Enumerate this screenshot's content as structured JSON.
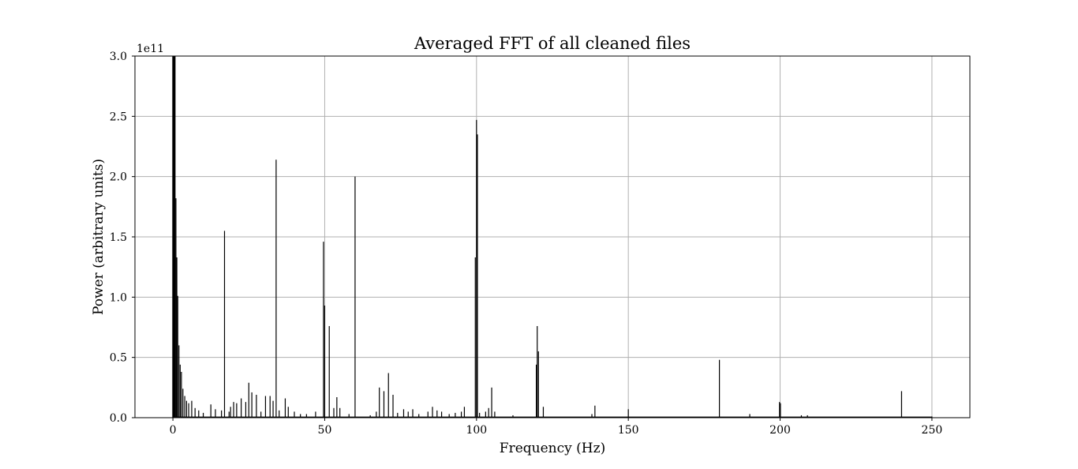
{
  "chart_data": {
    "type": "line",
    "title": "Averaged FFT of all cleaned files",
    "xlabel": "Frequency (Hz)",
    "ylabel": "Power (arbitrary units)",
    "y_offset_text": "1e11",
    "xlim": [
      -12.5,
      262.5
    ],
    "ylim": [
      0,
      3.0
    ],
    "y_scale_factor": 100000000000.0,
    "grid": true,
    "line_color": "#000000",
    "grid_color": "#b0b0b0",
    "x_ticks": [
      0,
      50,
      100,
      150,
      200,
      250
    ],
    "x_tick_labels": [
      "0",
      "50",
      "100",
      "150",
      "200",
      "250"
    ],
    "y_ticks": [
      0.0,
      0.5,
      1.0,
      1.5,
      2.0,
      2.5,
      3.0
    ],
    "y_tick_labels": [
      "0.0",
      "0.5",
      "1.0",
      "1.5",
      "2.0",
      "2.5",
      "3.0"
    ],
    "series": [
      {
        "peaks": [
          {
            "x": 0.1,
            "y": 3.0
          },
          {
            "x": 0.4,
            "y": 3.0
          },
          {
            "x": 0.7,
            "y": 3.0
          },
          {
            "x": 1.0,
            "y": 1.82
          },
          {
            "x": 1.3,
            "y": 1.33
          },
          {
            "x": 1.6,
            "y": 1.01
          },
          {
            "x": 2.0,
            "y": 0.6
          },
          {
            "x": 2.4,
            "y": 0.44
          },
          {
            "x": 2.8,
            "y": 0.38
          },
          {
            "x": 3.3,
            "y": 0.24
          },
          {
            "x": 3.9,
            "y": 0.18
          },
          {
            "x": 4.5,
            "y": 0.14
          },
          {
            "x": 5.2,
            "y": 0.12
          },
          {
            "x": 6.2,
            "y": 0.14
          },
          {
            "x": 7.3,
            "y": 0.08
          },
          {
            "x": 8.5,
            "y": 0.06
          },
          {
            "x": 10.0,
            "y": 0.04
          },
          {
            "x": 12.5,
            "y": 0.11
          },
          {
            "x": 14.0,
            "y": 0.07
          },
          {
            "x": 16.0,
            "y": 0.06
          },
          {
            "x": 17.0,
            "y": 1.55
          },
          {
            "x": 18.5,
            "y": 0.05
          },
          {
            "x": 19.0,
            "y": 0.09
          },
          {
            "x": 20.0,
            "y": 0.13
          },
          {
            "x": 21.0,
            "y": 0.12
          },
          {
            "x": 22.5,
            "y": 0.16
          },
          {
            "x": 24.0,
            "y": 0.13
          },
          {
            "x": 25.0,
            "y": 0.29
          },
          {
            "x": 26.0,
            "y": 0.21
          },
          {
            "x": 27.5,
            "y": 0.19
          },
          {
            "x": 29.0,
            "y": 0.05
          },
          {
            "x": 30.5,
            "y": 0.18
          },
          {
            "x": 32.0,
            "y": 0.18
          },
          {
            "x": 33.0,
            "y": 0.14
          },
          {
            "x": 34.0,
            "y": 2.14
          },
          {
            "x": 35.0,
            "y": 0.06
          },
          {
            "x": 37.0,
            "y": 0.16
          },
          {
            "x": 38.0,
            "y": 0.09
          },
          {
            "x": 40.0,
            "y": 0.05
          },
          {
            "x": 42.0,
            "y": 0.03
          },
          {
            "x": 44.0,
            "y": 0.03
          },
          {
            "x": 47.0,
            "y": 0.05
          },
          {
            "x": 49.6,
            "y": 1.46
          },
          {
            "x": 50.0,
            "y": 0.93
          },
          {
            "x": 51.5,
            "y": 0.76
          },
          {
            "x": 53.0,
            "y": 0.08
          },
          {
            "x": 54.0,
            "y": 0.17
          },
          {
            "x": 55.0,
            "y": 0.08
          },
          {
            "x": 58.0,
            "y": 0.03
          },
          {
            "x": 60.0,
            "y": 2.0
          },
          {
            "x": 65.0,
            "y": 0.02
          },
          {
            "x": 67.0,
            "y": 0.05
          },
          {
            "x": 68.0,
            "y": 0.25
          },
          {
            "x": 69.5,
            "y": 0.22
          },
          {
            "x": 71.0,
            "y": 0.37
          },
          {
            "x": 72.5,
            "y": 0.19
          },
          {
            "x": 74.0,
            "y": 0.04
          },
          {
            "x": 76.0,
            "y": 0.07
          },
          {
            "x": 77.5,
            "y": 0.05
          },
          {
            "x": 79.0,
            "y": 0.07
          },
          {
            "x": 81.0,
            "y": 0.03
          },
          {
            "x": 84.0,
            "y": 0.05
          },
          {
            "x": 85.5,
            "y": 0.09
          },
          {
            "x": 87.0,
            "y": 0.06
          },
          {
            "x": 88.5,
            "y": 0.05
          },
          {
            "x": 91.0,
            "y": 0.03
          },
          {
            "x": 93.0,
            "y": 0.04
          },
          {
            "x": 95.0,
            "y": 0.05
          },
          {
            "x": 96.0,
            "y": 0.09
          },
          {
            "x": 99.6,
            "y": 1.33
          },
          {
            "x": 100.0,
            "y": 2.47
          },
          {
            "x": 100.3,
            "y": 2.35
          },
          {
            "x": 101.0,
            "y": 0.04
          },
          {
            "x": 103.0,
            "y": 0.05
          },
          {
            "x": 104.0,
            "y": 0.08
          },
          {
            "x": 105.0,
            "y": 0.25
          },
          {
            "x": 106.0,
            "y": 0.05
          },
          {
            "x": 112.0,
            "y": 0.02
          },
          {
            "x": 119.7,
            "y": 0.44
          },
          {
            "x": 120.0,
            "y": 0.76
          },
          {
            "x": 120.4,
            "y": 0.55
          },
          {
            "x": 122.0,
            "y": 0.09
          },
          {
            "x": 138.0,
            "y": 0.03
          },
          {
            "x": 139.0,
            "y": 0.1
          },
          {
            "x": 150.0,
            "y": 0.07
          },
          {
            "x": 180.0,
            "y": 0.48
          },
          {
            "x": 190.0,
            "y": 0.03
          },
          {
            "x": 199.8,
            "y": 0.13
          },
          {
            "x": 200.1,
            "y": 0.12
          },
          {
            "x": 207.0,
            "y": 0.02
          },
          {
            "x": 209.0,
            "y": 0.02
          },
          {
            "x": 240.0,
            "y": 0.22
          },
          {
            "x": 250.0,
            "y": 0.01
          }
        ]
      }
    ]
  }
}
